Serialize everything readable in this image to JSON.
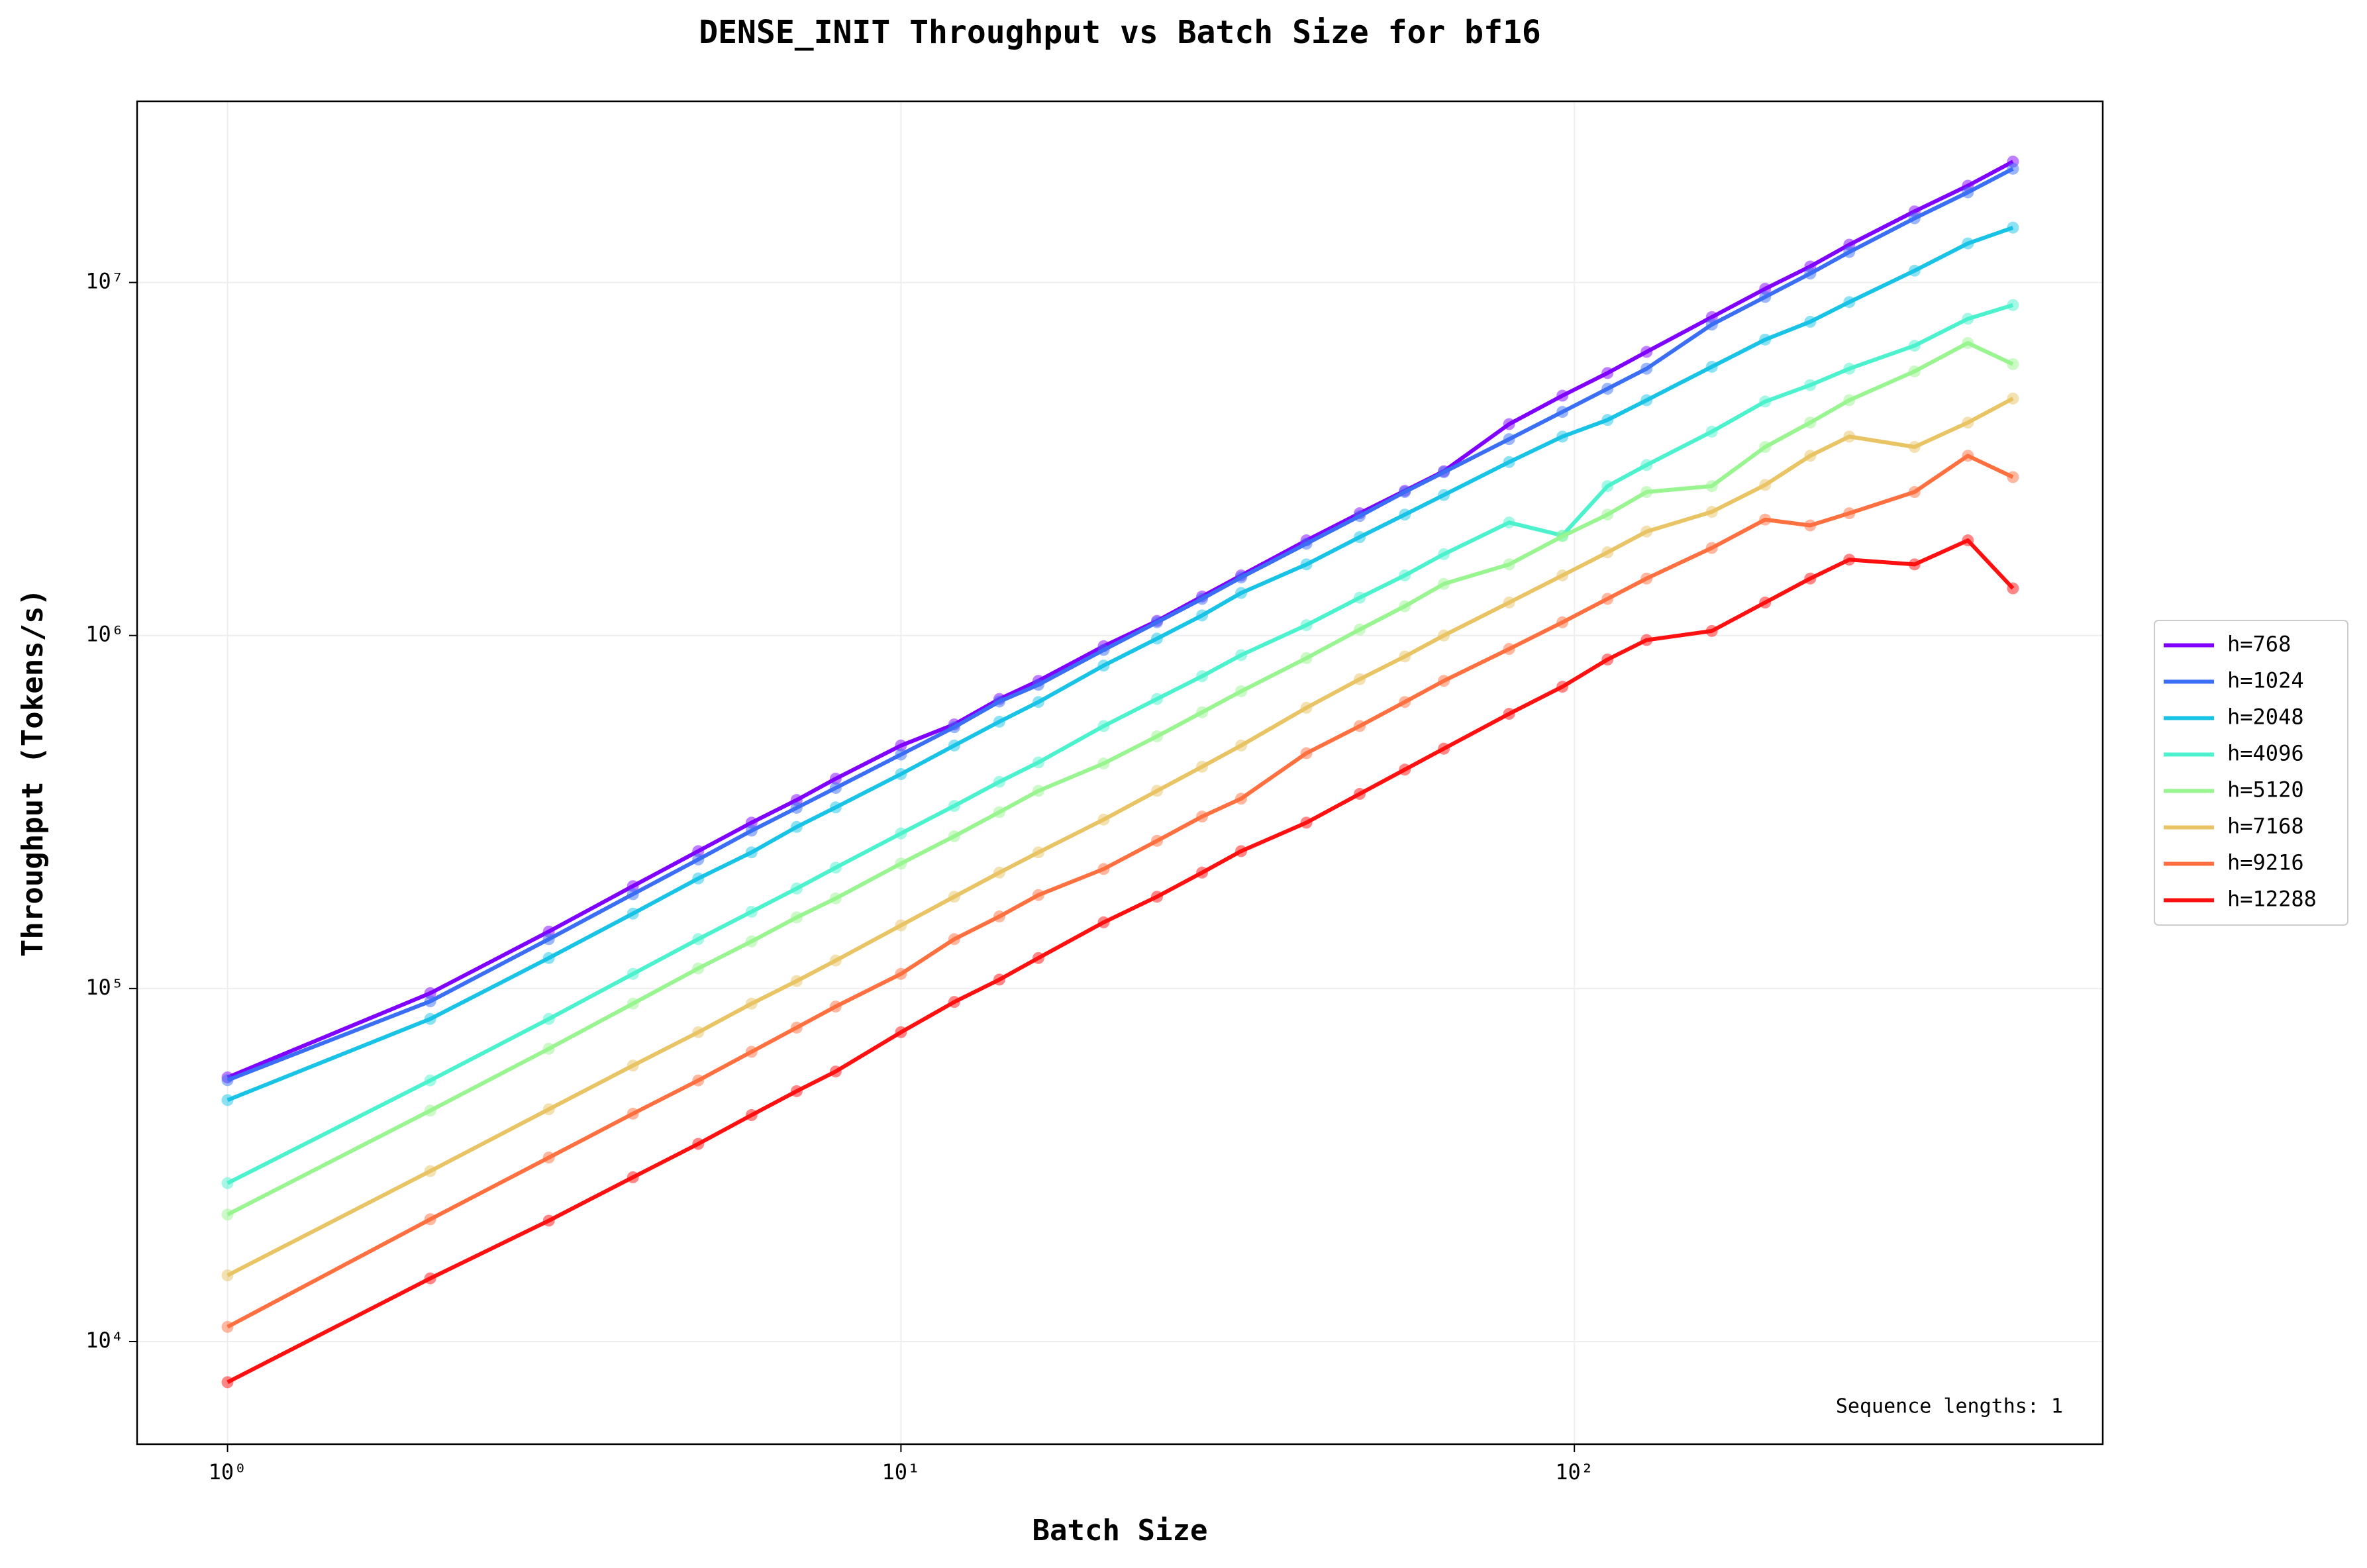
{
  "chart_data": {
    "type": "line",
    "title": "DENSE_INIT Throughput vs Batch Size for bf16",
    "x_label": "Batch Size",
    "y_label": "Throughput (Tokens/s)",
    "annotation": "Sequence lengths: 1",
    "log_x": true,
    "log_y": true,
    "grid": true,
    "legend": "center right outside",
    "xlim": [
      0.734,
      609
    ],
    "ylim": [
      5120,
      32600000
    ],
    "xticks": [
      {
        "value": 1,
        "label": "10⁰"
      },
      {
        "value": 10,
        "label": "10¹"
      },
      {
        "value": 100,
        "label": "10²"
      }
    ],
    "yticks": [
      {
        "value": 10000,
        "label": "10⁴"
      },
      {
        "value": 100000,
        "label": "10⁵"
      },
      {
        "value": 1000000,
        "label": "10⁶"
      },
      {
        "value": 10000000,
        "label": "10⁷"
      }
    ],
    "x": [
      1,
      2,
      3,
      4,
      5,
      6,
      7,
      8,
      10,
      12,
      14,
      16,
      20,
      24,
      28,
      32,
      40,
      48,
      56,
      64,
      80,
      96,
      112,
      128,
      160,
      192,
      224,
      256,
      320,
      384,
      448
    ],
    "series": [
      {
        "name": "h=768",
        "color": "#8000ff",
        "values": [
          56000,
          97000,
          145000,
          195000,
          245000,
          295000,
          342000,
          393000,
          488000,
          560000,
          661000,
          744000,
          933000,
          1100000,
          1290000,
          1480000,
          1860000,
          2220000,
          2570000,
          2920000,
          3970000,
          4780000,
          5540000,
          6360000,
          7980000,
          9600000,
          11100000,
          12800000,
          15900000,
          18800000,
          22000000
        ]
      },
      {
        "name": "h=1024",
        "color": "#3a6ef5",
        "values": [
          55000,
          92000,
          138000,
          185000,
          232000,
          280000,
          325000,
          370000,
          460000,
          550000,
          650000,
          725000,
          910000,
          1090000,
          1270000,
          1460000,
          1820000,
          2180000,
          2550000,
          2900000,
          3600000,
          4300000,
          5000000,
          5700000,
          7600000,
          9100000,
          10600000,
          12200000,
          15200000,
          18000000,
          21000000
        ]
      },
      {
        "name": "h=2048",
        "color": "#19c3e6",
        "values": [
          48300,
          82000,
          122000,
          163000,
          205000,
          243000,
          287000,
          326000,
          405000,
          488000,
          570000,
          648000,
          822000,
          980000,
          1140000,
          1320000,
          1590000,
          1900000,
          2200000,
          2500000,
          3100000,
          3660000,
          4080000,
          4640000,
          5770000,
          6890000,
          7740000,
          8800000,
          10800000,
          12900000,
          14300000
        ]
      },
      {
        "name": "h=4096",
        "color": "#4cf2ce",
        "values": [
          28100,
          54900,
          82000,
          110000,
          138000,
          165000,
          192000,
          220000,
          275000,
          329000,
          385000,
          437000,
          554000,
          661000,
          767000,
          880000,
          1070000,
          1280000,
          1480000,
          1700000,
          2090000,
          1920000,
          2650000,
          3040000,
          3780000,
          4600000,
          5120000,
          5700000,
          6620000,
          7890000,
          8630000
        ]
      },
      {
        "name": "h=5120",
        "color": "#98f590",
        "values": [
          22900,
          45100,
          67500,
          90600,
          114000,
          136000,
          159000,
          180000,
          226000,
          270000,
          316000,
          363000,
          434000,
          518000,
          606000,
          695000,
          863000,
          1040000,
          1210000,
          1400000,
          1590000,
          1910000,
          2200000,
          2550000,
          2650000,
          3420000,
          4010000,
          4640000,
          5600000,
          6740000,
          5870000
        ]
      },
      {
        "name": "h=7168",
        "color": "#e8c465",
        "values": [
          15400,
          30400,
          45500,
          60500,
          75200,
          90600,
          105000,
          120000,
          151000,
          182000,
          213000,
          243000,
          301000,
          363000,
          425000,
          488000,
          624000,
          752000,
          872000,
          1000000,
          1240000,
          1480000,
          1720000,
          1970000,
          2240000,
          2670000,
          3230000,
          3660000,
          3420000,
          4010000,
          4690000
        ]
      },
      {
        "name": "h=9216",
        "color": "#ff7040",
        "values": [
          11000,
          22200,
          33200,
          44200,
          54900,
          66200,
          77500,
          88900,
          110000,
          138000,
          160000,
          184000,
          218000,
          262000,
          307000,
          345000,
          464000,
          554000,
          648000,
          744000,
          916000,
          1090000,
          1270000,
          1450000,
          1770000,
          2130000,
          2050000,
          2220000,
          2550000,
          3230000,
          2810000
        ]
      },
      {
        "name": "h=12288",
        "color": "#ff1010",
        "values": [
          7670,
          15100,
          22000,
          29200,
          36300,
          43800,
          51200,
          58200,
          75200,
          91600,
          106000,
          122000,
          154000,
          182000,
          213000,
          245000,
          295000,
          356000,
          417000,
          478000,
          600000,
          716000,
          855000,
          971000,
          1030000,
          1240000,
          1450000,
          1640000,
          1590000,
          1860000,
          1360000
        ]
      }
    ]
  }
}
